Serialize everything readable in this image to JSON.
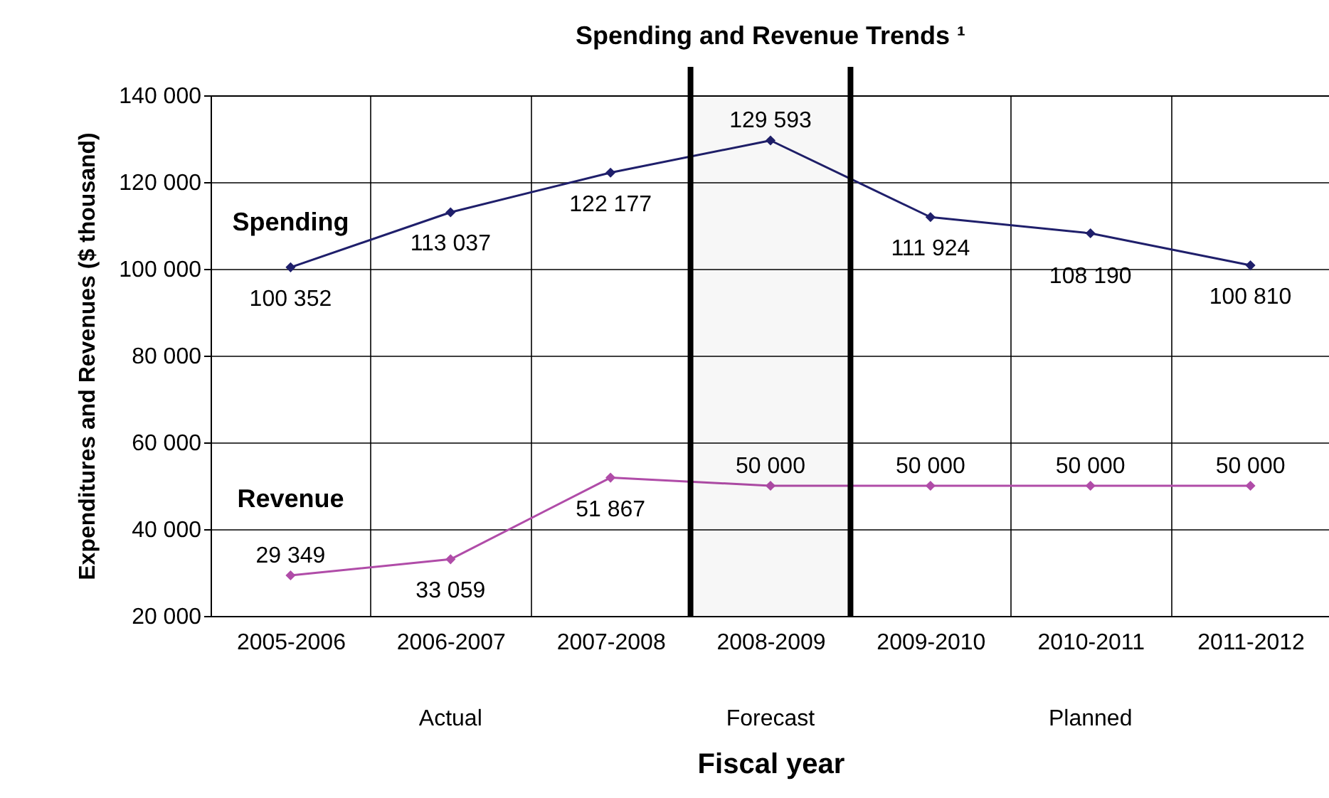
{
  "chart_data": {
    "type": "line",
    "title": "Spending and Revenue Trends ¹",
    "xlabel": "Fiscal year",
    "ylabel": "Expenditures and Revenues ($ thousand)",
    "categories": [
      "2005-2006",
      "2006-2007",
      "2007-2008",
      "2008-2009",
      "2009-2010",
      "2010-2011",
      "2011-2012"
    ],
    "series": [
      {
        "name": "Spending",
        "color": "#1f1f6b",
        "values": [
          100352,
          113037,
          122177,
          129593,
          111924,
          108190,
          100810
        ],
        "value_labels": [
          "100 352",
          "113 037",
          "122 177",
          "129 593",
          "111 924",
          "108 190",
          "100 810"
        ]
      },
      {
        "name": "Revenue",
        "color": "#b04ca8",
        "values": [
          29349,
          33059,
          51867,
          50000,
          50000,
          50000,
          50000
        ],
        "value_labels": [
          "29 349",
          "33 059",
          "51 867",
          "50 000",
          "50 000",
          "50 000",
          "50 000"
        ]
      }
    ],
    "ylim": [
      20000,
      140000
    ],
    "yticks": [
      {
        "value": 20000,
        "label": "20 000"
      },
      {
        "value": 40000,
        "label": "40 000"
      },
      {
        "value": 60000,
        "label": "60 000"
      },
      {
        "value": 80000,
        "label": "80 000"
      },
      {
        "value": 100000,
        "label": "100 000"
      },
      {
        "value": 120000,
        "label": "120 000"
      },
      {
        "value": 140000,
        "label": "140 000"
      }
    ],
    "bands": [
      {
        "axis": "x",
        "from": "2008-2009",
        "to": "2008-2009",
        "color": "#000000"
      }
    ],
    "annotations": [
      "Actual",
      "Forecast",
      "Planned"
    ],
    "grid": true,
    "legend": false,
    "marker": "diamond",
    "line_style": "solid"
  }
}
